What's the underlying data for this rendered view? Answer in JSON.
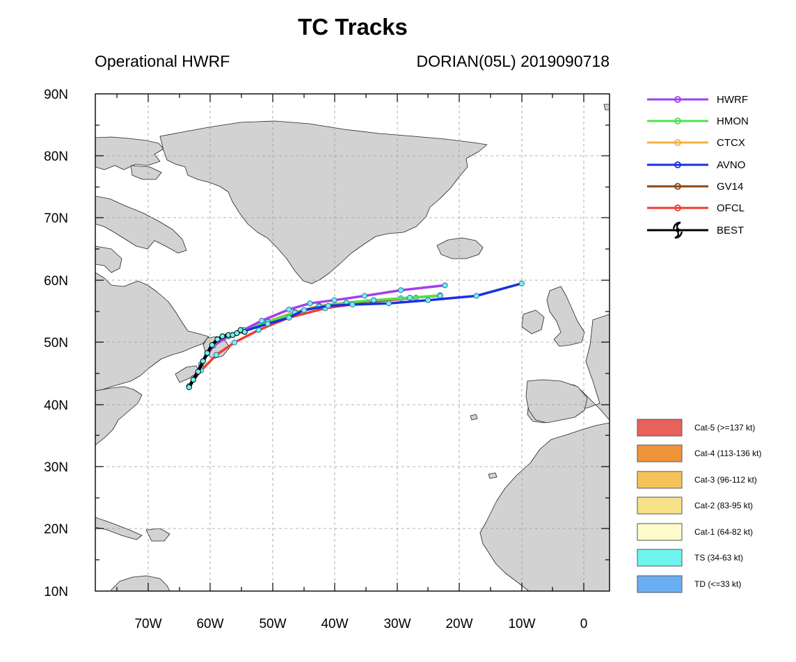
{
  "title": "TC Tracks",
  "subtitle_left": "Operational HWRF",
  "subtitle_right": "DORIAN(05L) 2019090718",
  "map": {
    "lon_range": [
      -80,
      5
    ],
    "lat_range": [
      10,
      90
    ],
    "lon_ticks": [
      {
        "value": -70,
        "label": "70W"
      },
      {
        "value": -60,
        "label": "60W"
      },
      {
        "value": -50,
        "label": "50W"
      },
      {
        "value": -40,
        "label": "40W"
      },
      {
        "value": -30,
        "label": "30W"
      },
      {
        "value": -20,
        "label": "20W"
      },
      {
        "value": -10,
        "label": "10W"
      },
      {
        "value": 0,
        "label": "0"
      }
    ],
    "lat_ticks": [
      {
        "value": 90,
        "label": "90N"
      },
      {
        "value": 80,
        "label": "80N"
      },
      {
        "value": 70,
        "label": "70N"
      },
      {
        "value": 60,
        "label": "60N"
      },
      {
        "value": 50,
        "label": "50N"
      },
      {
        "value": 40,
        "label": "40N"
      },
      {
        "value": 30,
        "label": "30N"
      },
      {
        "value": 20,
        "label": "20N"
      },
      {
        "value": 10,
        "label": "10N"
      }
    ],
    "land_color": "#d2d2d2",
    "gridlines": "dashed"
  },
  "legend": {
    "models": [
      {
        "name": "HWRF",
        "color": "#a040f0"
      },
      {
        "name": "HMON",
        "color": "#50e050"
      },
      {
        "name": "CTCX",
        "color": "#f5b040"
      },
      {
        "name": "AVNO",
        "color": "#1a30e0"
      },
      {
        "name": "GV14",
        "color": "#8b4513"
      },
      {
        "name": "OFCL",
        "color": "#f03c2c"
      },
      {
        "name": "BEST",
        "color": "#000000"
      }
    ],
    "categories": [
      {
        "label": "Cat-5 (>=137 kt)",
        "color": "#e8615a"
      },
      {
        "label": "Cat-4 (113-136 kt)",
        "color": "#f0943c"
      },
      {
        "label": "Cat-3 (96-112 kt)",
        "color": "#f7c25a"
      },
      {
        "label": "Cat-2 (83-95 kt)",
        "color": "#f7e28a"
      },
      {
        "label": "Cat-1 (64-82 kt)",
        "color": "#fffbcd"
      },
      {
        "label": "TS (34-63 kt)",
        "color": "#6ef5ee"
      },
      {
        "label": "TD (<=33 kt)",
        "color": "#6aaff2"
      }
    ]
  },
  "chart_data": {
    "type": "scatter",
    "title": "TC Tracks",
    "xlabel": "",
    "ylabel": "",
    "xlim": [
      -80,
      5
    ],
    "ylim": [
      10,
      90
    ],
    "series": [
      {
        "name": "HWRF",
        "points": [
          [
            -64.5,
            43
          ],
          [
            -62.5,
            46.5
          ],
          [
            -60.5,
            49.5
          ],
          [
            -58,
            51
          ],
          [
            -55.5,
            52
          ],
          [
            -52.5,
            53.5
          ],
          [
            -48,
            55.3
          ],
          [
            -44.5,
            56.3
          ],
          [
            -40.5,
            56.8
          ],
          [
            -35.5,
            57.5
          ],
          [
            -29.5,
            58.4
          ],
          [
            -22.2,
            59.2
          ]
        ]
      },
      {
        "name": "HMON",
        "points": [
          [
            -64.5,
            43
          ],
          [
            -62.5,
            46.5
          ],
          [
            -60.5,
            49.5
          ],
          [
            -58,
            51
          ],
          [
            -55.5,
            52
          ],
          [
            -51.5,
            53.3
          ],
          [
            -47,
            54.8
          ],
          [
            -43,
            55.8
          ],
          [
            -38.5,
            56.4
          ],
          [
            -34,
            56.8
          ],
          [
            -28,
            57.2
          ],
          [
            -23,
            57.5
          ]
        ]
      },
      {
        "name": "CTCX",
        "points": [
          [
            -64.5,
            43
          ],
          [
            -62.5,
            46.5
          ],
          [
            -60.5,
            49.5
          ],
          [
            -58,
            51
          ],
          [
            -55.5,
            52
          ],
          [
            -51.5,
            53.4
          ],
          [
            -47,
            54.9
          ],
          [
            -43,
            55.9
          ],
          [
            -38.5,
            56.4
          ],
          [
            -34,
            56.8
          ],
          [
            -28,
            57.2
          ],
          [
            -23,
            57.6
          ]
        ]
      },
      {
        "name": "AVNO",
        "points": [
          [
            -64.5,
            43
          ],
          [
            -62.5,
            46.5
          ],
          [
            -60.5,
            49.5
          ],
          [
            -58,
            51
          ],
          [
            -55.5,
            51.8
          ],
          [
            -51.5,
            53
          ],
          [
            -48,
            54
          ],
          [
            -45.5,
            55.2
          ],
          [
            -41.5,
            55.9
          ],
          [
            -37.5,
            56.1
          ],
          [
            -31.5,
            56.3
          ],
          [
            -25,
            56.8
          ],
          [
            -17,
            57.5
          ],
          [
            -9.5,
            59.5
          ]
        ]
      },
      {
        "name": "GV14",
        "points": [
          [
            -64.5,
            43
          ],
          [
            -62.5,
            46.5
          ],
          [
            -60.5,
            49.5
          ],
          [
            -58,
            51
          ],
          [
            -55.5,
            52
          ],
          [
            -51.5,
            53.3
          ],
          [
            -47,
            54.8
          ],
          [
            -43,
            55.8
          ],
          [
            -38.5,
            56.3
          ],
          [
            -34,
            56.7
          ],
          [
            -29.5,
            57.1
          ],
          [
            -23,
            57.5
          ]
        ]
      },
      {
        "name": "OFCL",
        "points": [
          [
            -64.5,
            43
          ],
          [
            -62.5,
            45.5
          ],
          [
            -60,
            48
          ],
          [
            -57,
            50
          ],
          [
            -53,
            52
          ],
          [
            -48,
            54
          ],
          [
            -42,
            55.5
          ],
          [
            -35,
            56.5
          ],
          [
            -27,
            57.2
          ]
        ]
      },
      {
        "name": "BEST",
        "points": [
          [
            -64.5,
            42.8
          ],
          [
            -63.8,
            44
          ],
          [
            -63,
            45.3
          ],
          [
            -62.2,
            47
          ],
          [
            -61.5,
            48.3
          ],
          [
            -60.7,
            49.6
          ],
          [
            -59.8,
            50.5
          ],
          [
            -59,
            51
          ],
          [
            -58,
            51.2
          ],
          [
            -57.3,
            51.2
          ],
          [
            -56.6,
            51.5
          ],
          [
            -56,
            52
          ],
          [
            -55.3,
            51.7
          ]
        ]
      }
    ]
  }
}
